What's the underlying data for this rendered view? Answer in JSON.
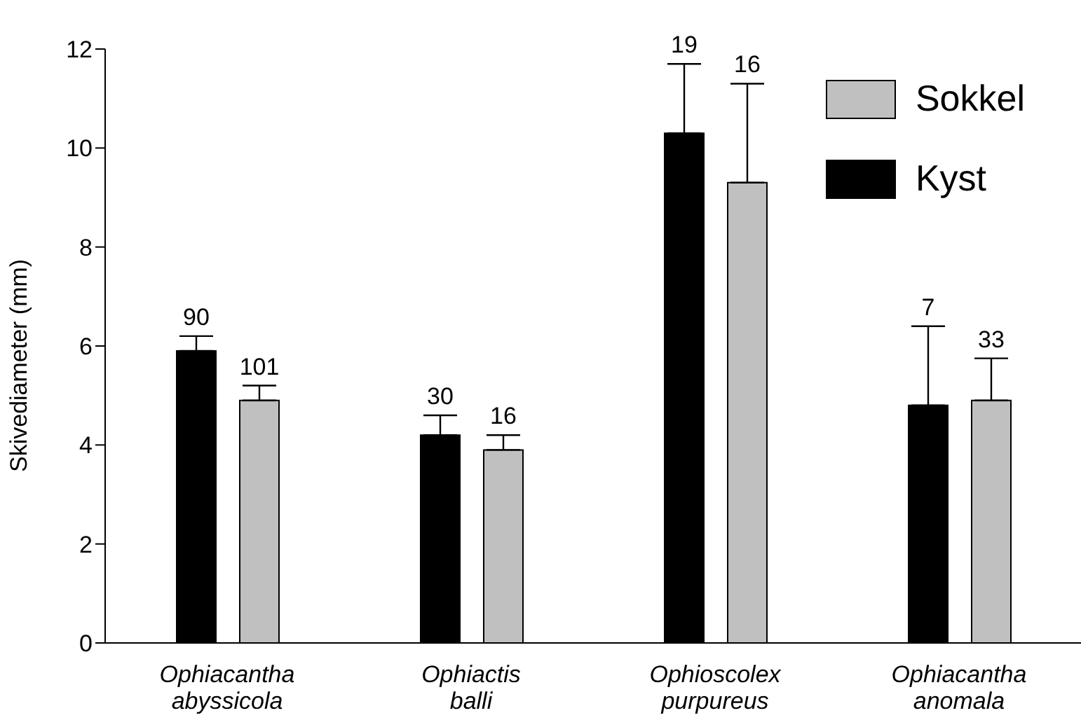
{
  "chart_data": {
    "type": "bar",
    "ylabel": "Skivediameter (mm)",
    "categories": [
      "Ophiacantha abyssicola",
      "Ophiactis balli",
      "Ophioscolex purpureus",
      "Ophiacantha anomala"
    ],
    "series": [
      {
        "name": "Kyst",
        "color": "#000000",
        "values": [
          5.9,
          4.2,
          10.3,
          4.8
        ],
        "errors": [
          [
            5.9,
            6.2
          ],
          [
            4.2,
            4.6
          ],
          [
            10.3,
            11.7
          ],
          [
            4.8,
            6.4
          ]
        ]
      },
      {
        "name": "Sokkel",
        "color": "#c0c0c0",
        "values": [
          4.9,
          3.9,
          9.3,
          4.9
        ],
        "errors": [
          [
            4.9,
            5.2
          ],
          [
            3.9,
            4.2
          ],
          [
            9.3,
            11.3
          ],
          [
            4.9,
            5.75
          ]
        ]
      }
    ],
    "annotations": [
      "90",
      "101",
      "30",
      "16",
      "19",
      "16",
      "7",
      "33"
    ],
    "ylim": [
      0,
      12
    ],
    "yticks": [
      0,
      2,
      4,
      6,
      8,
      10,
      12
    ],
    "grid": false,
    "legend": "top right"
  }
}
